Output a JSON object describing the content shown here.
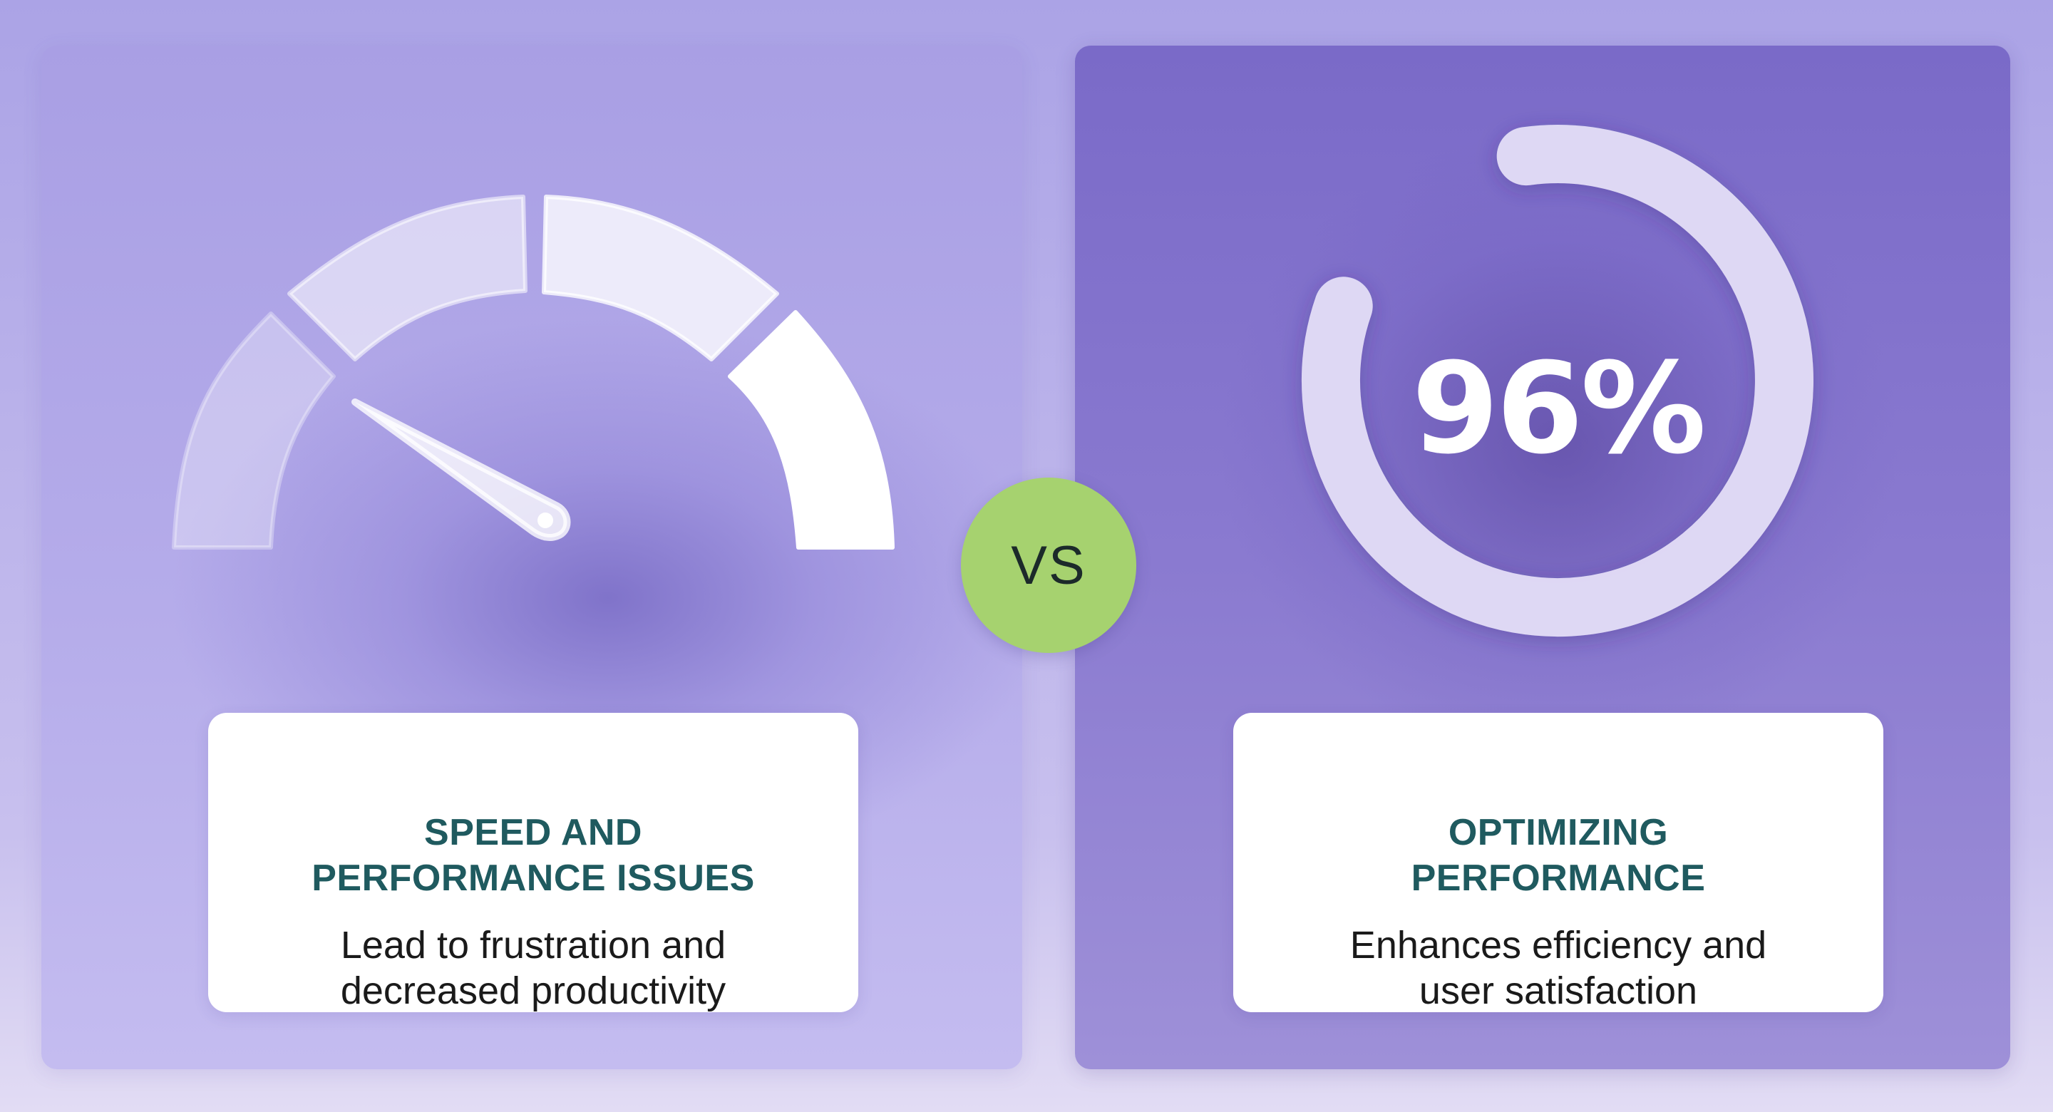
{
  "left_panel": {
    "title_line1": "SPEED AND",
    "title_line2": "PERFORMANCE ISSUES",
    "desc_line1": "Lead to frustration and",
    "desc_line2": "decreased productivity",
    "gauge_icon": "speedometer-gauge-icon"
  },
  "vs_badge": {
    "label": "VS"
  },
  "right_panel": {
    "progress_value": "96%",
    "progress_fraction": 0.96,
    "title_line1": "OPTIMIZING",
    "title_line2": "PERFORMANCE",
    "desc_line1": "Enhances efficiency and",
    "desc_line2": "user satisfaction",
    "ring_icon": "progress-ring-icon"
  },
  "colors": {
    "title_teal": "#1f5a5f",
    "vs_green": "#a6d26f",
    "panel_left": "#b1a8e8",
    "panel_right": "#8474cc"
  }
}
